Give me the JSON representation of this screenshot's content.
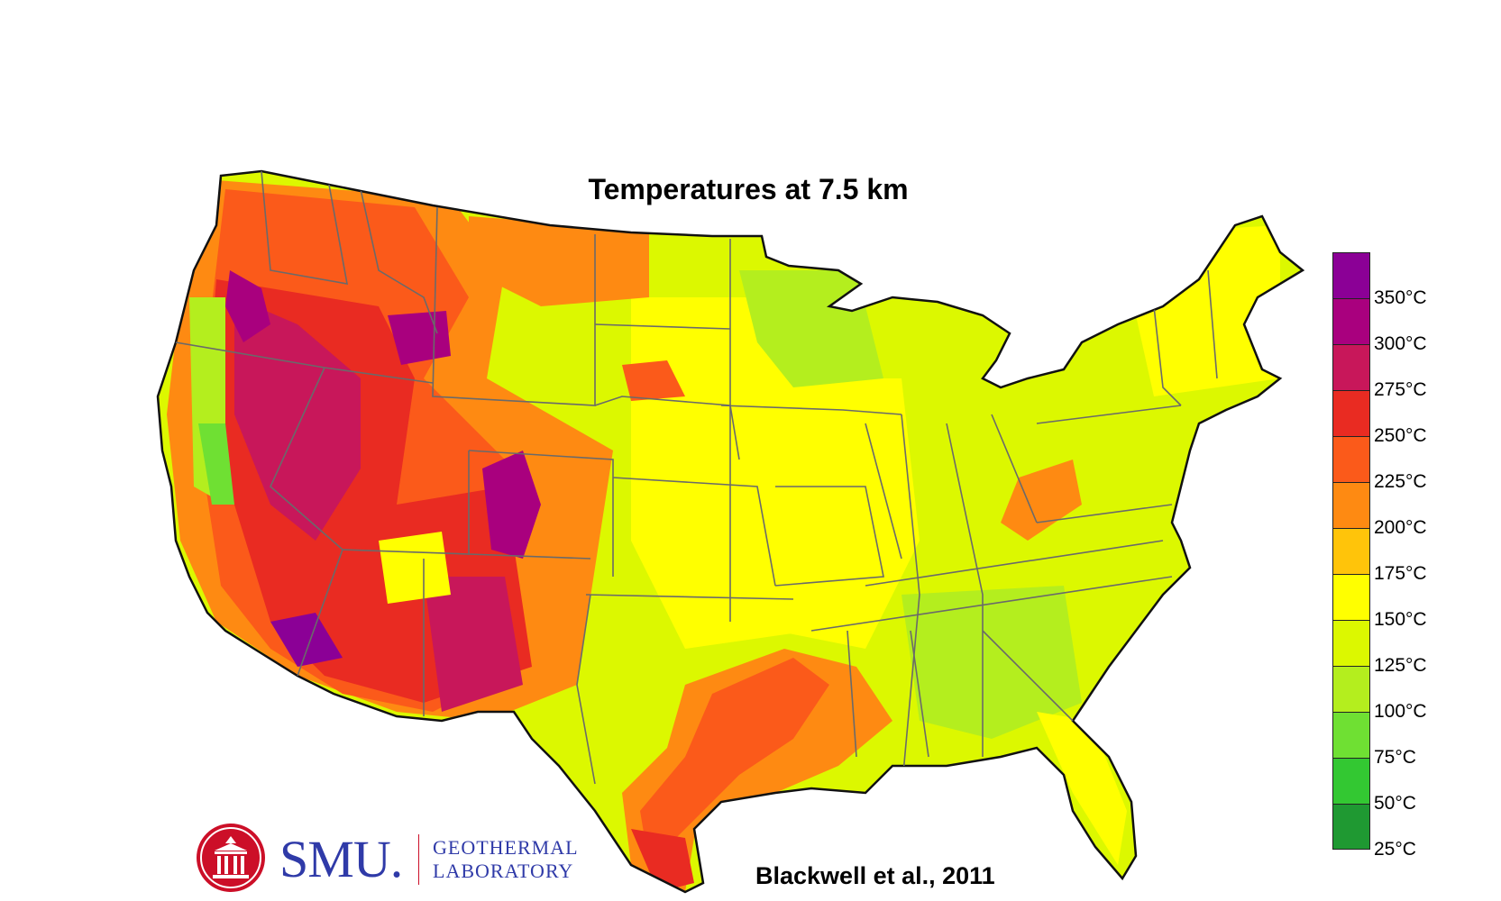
{
  "map": {
    "title": "Temperatures at 7.5 km",
    "citation": "Blackwell et al., 2011"
  },
  "legend": {
    "classes": [
      {
        "label": "",
        "color": "#8b0096"
      },
      {
        "label": "350°C",
        "color": "#a9007e"
      },
      {
        "label": "300°C",
        "color": "#c8175a"
      },
      {
        "label": "275°C",
        "color": "#e92b22"
      },
      {
        "label": "250°C",
        "color": "#fb5a1a"
      },
      {
        "label": "225°C",
        "color": "#fe8a12"
      },
      {
        "label": "200°C",
        "color": "#ffc40a"
      },
      {
        "label": "175°C",
        "color": "#ffff00"
      },
      {
        "label": "150°C",
        "color": "#dcf800"
      },
      {
        "label": "125°C",
        "color": "#b4ee1e"
      },
      {
        "label": "100°C",
        "color": "#6fe033"
      },
      {
        "label": "75°C",
        "color": "#33c832"
      },
      {
        "label": "50°C",
        "color": "#1f9932"
      },
      {
        "label": "25°C",
        "color": ""
      }
    ]
  },
  "logo": {
    "name": "SMU.",
    "dept_line1": "GEOTHERMAL",
    "dept_line2": "LABORATORY",
    "primary_color": "#2f3aa8",
    "accent_color": "#cc0f28"
  }
}
